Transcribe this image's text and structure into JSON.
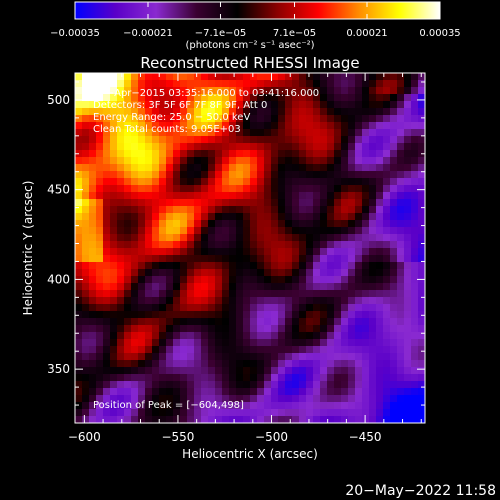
{
  "chart_data": {
    "type": "heatmap",
    "title": "Reconstructed RHESSI Image",
    "xlabel": "Heliocentric X (arcsec)",
    "ylabel": "Heliocentric Y (arcsec)",
    "xlim": [
      -605,
      -418
    ],
    "ylim": [
      320,
      515
    ],
    "xticks": [
      -600,
      -550,
      -500,
      -450
    ],
    "xtick_labels": [
      "−600",
      "−550",
      "−500",
      "−450"
    ],
    "yticks": [
      350,
      400,
      450,
      500
    ],
    "ytick_labels": [
      "350",
      "400",
      "450",
      "500"
    ],
    "colorbar": {
      "range": [
        -0.00035,
        0.00035
      ],
      "ticks": [
        -0.00035,
        -0.00021,
        -7.1e-05,
        7.1e-05,
        0.00021,
        0.00035
      ],
      "tick_labels": [
        "−0.00035",
        "−0.00021",
        "−7.1e−05",
        "7.1e−05",
        "0.00021",
        "0.00035"
      ],
      "unit_label": "(photons cm⁻² s⁻¹ asec⁻²)",
      "colors": [
        "#0000ff",
        "#5a00c8",
        "#8a2ad0",
        "#3a0030",
        "#000000",
        "#8c0000",
        "#ff0000",
        "#ff8c00",
        "#ffff00",
        "#ffffff"
      ]
    },
    "annotations": [
      "27−Apr−2015 03:35:16.000 to 03:41:16.000",
      "Detectors: 3F 5F 6F 7F 8F 9F, Att 0",
      "Energy Range: 25.0 − 50.0 keV",
      "Clean     Total counts: 9.05E+03"
    ],
    "peak_label": "Position of Peak = [−604,498]",
    "peak": [
      -604,
      498
    ]
  },
  "footer": {
    "date": "20−May−2022 11:58"
  }
}
